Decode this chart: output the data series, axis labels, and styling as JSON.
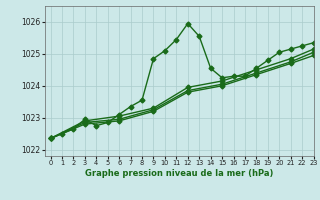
{
  "title": "Graphe pression niveau de la mer (hPa)",
  "background_color": "#cce8e8",
  "grid_color": "#aacccc",
  "line_color": "#1a6b1a",
  "xlim": [
    -0.5,
    23
  ],
  "ylim": [
    1021.8,
    1026.5
  ],
  "yticks": [
    1022,
    1023,
    1024,
    1025,
    1026
  ],
  "xticks": [
    0,
    1,
    2,
    3,
    4,
    5,
    6,
    7,
    8,
    9,
    10,
    11,
    12,
    13,
    14,
    15,
    16,
    17,
    18,
    19,
    20,
    21,
    22,
    23
  ],
  "series": [
    {
      "x": [
        0,
        1,
        2,
        3,
        4,
        5,
        6,
        7,
        8,
        9,
        10,
        11,
        12,
        13,
        14,
        15,
        16,
        17,
        18,
        19,
        20,
        21,
        22,
        23
      ],
      "y": [
        1022.35,
        1022.5,
        1022.65,
        1022.95,
        1022.75,
        1022.85,
        1023.1,
        1023.35,
        1023.55,
        1024.85,
        1025.1,
        1025.45,
        1025.95,
        1025.55,
        1024.55,
        1024.25,
        1024.3,
        1024.3,
        1024.55,
        1024.8,
        1025.05,
        1025.15,
        1025.25,
        1025.35
      ],
      "marker": "D",
      "markersize": 2.5,
      "linewidth": 1.0
    },
    {
      "x": [
        0,
        3,
        6,
        9,
        12,
        15,
        18,
        21,
        23
      ],
      "y": [
        1022.35,
        1022.9,
        1023.05,
        1023.3,
        1023.95,
        1024.15,
        1024.5,
        1024.85,
        1025.15
      ],
      "marker": "D",
      "markersize": 2.5,
      "linewidth": 1.0
    },
    {
      "x": [
        0,
        3,
        6,
        9,
        12,
        15,
        18,
        21,
        23
      ],
      "y": [
        1022.35,
        1022.85,
        1022.95,
        1023.25,
        1023.85,
        1024.05,
        1024.4,
        1024.75,
        1025.05
      ],
      "marker": "D",
      "markersize": 2.5,
      "linewidth": 1.0
    },
    {
      "x": [
        0,
        3,
        6,
        9,
        12,
        15,
        18,
        21,
        23
      ],
      "y": [
        1022.35,
        1022.8,
        1022.9,
        1023.2,
        1023.8,
        1024.0,
        1024.35,
        1024.7,
        1024.95
      ],
      "marker": "D",
      "markersize": 2.5,
      "linewidth": 1.0
    }
  ]
}
